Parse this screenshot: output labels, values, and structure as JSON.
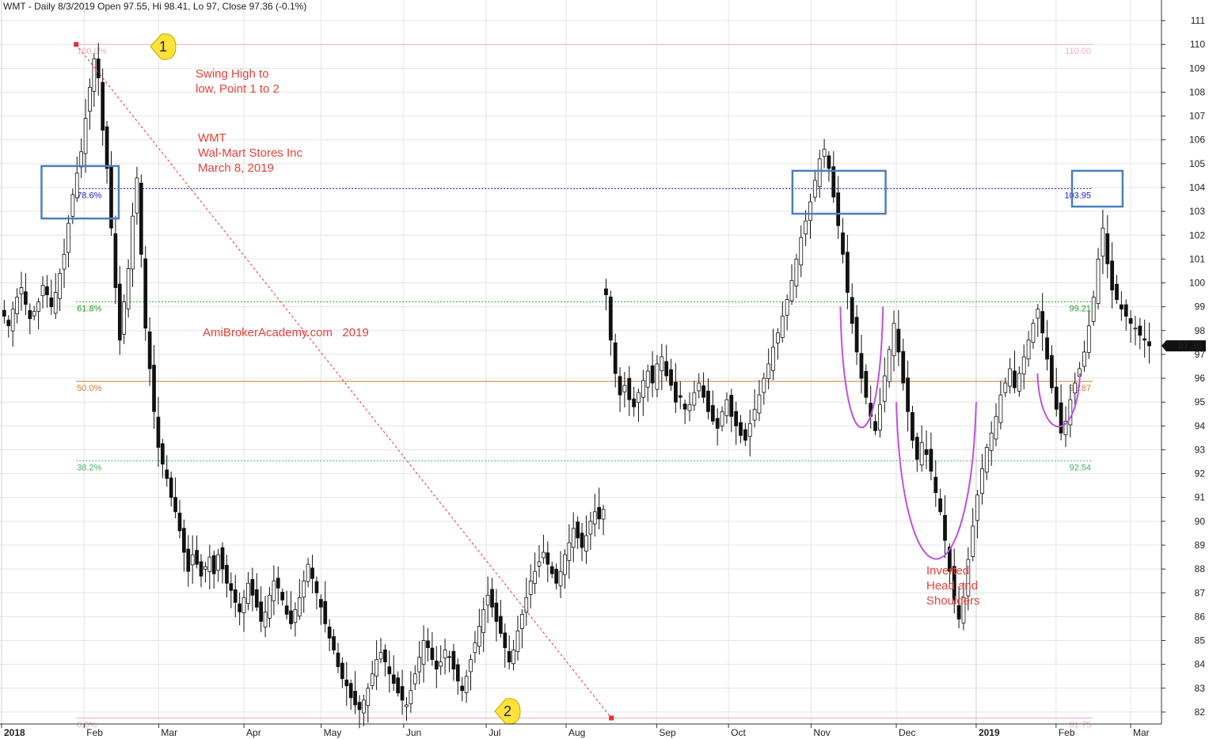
{
  "header": {
    "title": "WMT - Daily 8/3/2019 Open 97.55, Hi 98.41, Lo 97, Close 97.36 (-0.1%)"
  },
  "annotations": {
    "swing_line1": "Swing High to",
    "swing_line2": "low, Point 1 to 2",
    "ticker": "WMT",
    "company": "Wal-Mart Stores Inc",
    "date": "March 8, 2019",
    "watermark": "AmiBrokerAcademy.com   2019",
    "pattern_line1": "Inverted",
    "pattern_line2": "Head and",
    "pattern_line3": "Shoulders",
    "marker1": "1",
    "marker2": "2"
  },
  "colors": {
    "annotation": "#e8403a",
    "box": "#4a7ec0",
    "arc": "#c050e0",
    "trend": "#e83030",
    "fib_100": "#f0b0b8",
    "fib_786": "#2222cc",
    "fib_618": "#2a9a2a",
    "fib_50": "#d07a30",
    "fib_382": "#44b060",
    "fib_0": "#f0b0b8",
    "marker_fill": "#ffe23a"
  },
  "chart_data": {
    "type": "candlestick",
    "last_price": 97.36,
    "ylim": [
      81.5,
      111.4
    ],
    "y_ticks": [
      82,
      83,
      84,
      85,
      86,
      87,
      88,
      89,
      90,
      91,
      92,
      93,
      94,
      95,
      96,
      97,
      98,
      99,
      100,
      101,
      102,
      103,
      104,
      105,
      106,
      107,
      108,
      109,
      110,
      111
    ],
    "x_range": [
      "2018-01-01",
      "2019-03-12"
    ],
    "months": [
      {
        "label": "2018",
        "date": "2018-01-01",
        "bold": true
      },
      {
        "label": "Feb",
        "date": "2018-02-01",
        "bold": false
      },
      {
        "label": "Mar",
        "date": "2018-03-01",
        "bold": false
      },
      {
        "label": "Apr",
        "date": "2018-04-02",
        "bold": false
      },
      {
        "label": "May",
        "date": "2018-05-01",
        "bold": false
      },
      {
        "label": "Jun",
        "date": "2018-06-01",
        "bold": false
      },
      {
        "label": "Jul",
        "date": "2018-07-02",
        "bold": false
      },
      {
        "label": "Aug",
        "date": "2018-08-01",
        "bold": false
      },
      {
        "label": "Sep",
        "date": "2018-09-04",
        "bold": false
      },
      {
        "label": "Oct",
        "date": "2018-10-01",
        "bold": false
      },
      {
        "label": "Nov",
        "date": "2018-11-01",
        "bold": false
      },
      {
        "label": "Dec",
        "date": "2018-12-03",
        "bold": false
      },
      {
        "label": "2019",
        "date": "2019-01-02",
        "bold": true
      },
      {
        "label": "Feb",
        "date": "2019-02-01",
        "bold": false
      },
      {
        "label": "Mar",
        "date": "2019-03-01",
        "bold": false
      }
    ],
    "fib_levels": [
      {
        "ratio": "100.0%",
        "value": 110.0,
        "value_label": "110.00",
        "style": "solid",
        "color": "#f0b0b8"
      },
      {
        "ratio": "78.6%",
        "value": 103.95,
        "value_label": "103.95",
        "style": "dotted",
        "color": "#2222cc"
      },
      {
        "ratio": "61.8%",
        "value": 99.21,
        "value_label": "99.21",
        "style": "dotted",
        "color": "#2a9a2a"
      },
      {
        "ratio": "50.0%",
        "value": 95.87,
        "value_label": "95.87",
        "style": "solid",
        "color": "#d07a30"
      },
      {
        "ratio": "38.2%",
        "value": 92.54,
        "value_label": "92.54",
        "style": "dotted",
        "color": "#44b060"
      },
      {
        "ratio": "0.0%",
        "value": 81.75,
        "value_label": "81.75",
        "style": "solid",
        "color": "#f0b0b8"
      }
    ],
    "swing_points": [
      {
        "label": "1",
        "date": "2018-01-29",
        "value": 110.0
      },
      {
        "label": "2",
        "date": "2018-08-18",
        "value": 81.75
      }
    ],
    "boxes": [
      {
        "from": "2018-01-16",
        "to": "2018-02-14",
        "low": 102.7,
        "high": 104.9
      },
      {
        "from": "2018-10-25",
        "to": "2018-11-29",
        "low": 102.9,
        "high": 104.7
      },
      {
        "from": "2019-02-07",
        "to": "2019-02-26",
        "low": 103.2,
        "high": 104.7
      }
    ],
    "series": [
      {
        "segment": "Jan-Aug 2018",
        "start": "2018-01-02",
        "end": "2018-08-15",
        "closes": [
          98.6,
          98.2,
          98.9,
          99.4,
          99.8,
          99.1,
          98.5,
          98.8,
          99.2,
          99.9,
          99.5,
          99.0,
          99.6,
          100.4,
          101.2,
          102.5,
          103.7,
          104.6,
          105.5,
          106.9,
          108.2,
          109.4,
          108.6,
          106.4,
          104.8,
          102.3,
          99.8,
          97.6,
          99.2,
          100.6,
          102.8,
          104.4,
          101.2,
          98.1,
          96.4,
          94.6,
          93.1,
          92.4,
          91.8,
          91.0,
          90.4,
          89.6,
          88.7,
          87.9,
          88.6,
          88.2,
          87.7,
          88.1,
          88.5,
          87.8,
          88.6,
          88.0,
          87.4,
          87.1,
          86.6,
          86.2,
          86.8,
          87.4,
          86.9,
          86.4,
          85.8,
          86.2,
          86.9,
          87.5,
          87.2,
          86.7,
          86.1,
          85.7,
          86.3,
          86.8,
          87.5,
          88.2,
          87.6,
          87.0,
          86.4,
          85.7,
          85.1,
          84.6,
          83.9,
          83.4,
          83.1,
          82.6,
          82.3,
          82.1,
          82.5,
          83.0,
          83.6,
          84.2,
          84.5,
          84.1,
          83.6,
          83.2,
          82.8,
          82.5,
          82.3,
          82.9,
          83.6,
          84.3,
          85.0,
          84.7,
          84.2,
          83.8,
          84.1,
          84.6,
          84.3,
          83.8,
          83.3,
          82.9,
          83.5,
          84.2,
          84.9,
          85.6,
          86.3,
          86.9,
          86.4,
          85.8,
          85.3,
          84.7,
          84.1,
          84.6,
          85.4,
          86.1,
          86.8,
          87.5,
          87.9,
          88.3,
          88.7,
          88.2,
          87.8,
          87.4,
          87.9,
          88.6,
          89.1,
          89.7,
          89.3,
          88.9,
          89.4,
          90.0,
          90.4,
          90.1,
          90.5
        ]
      },
      {
        "segment": "Aug 2018-Mar 2019",
        "start": "2018-08-16",
        "end": "2019-03-08",
        "closes": [
          99.5,
          97.6,
          96.2,
          95.3,
          95.7,
          95.1,
          94.8,
          95.4,
          95.9,
          96.3,
          95.8,
          96.6,
          96.9,
          96.1,
          95.7,
          95.0,
          95.2,
          94.7,
          94.9,
          95.4,
          95.8,
          95.2,
          94.6,
          94.2,
          93.9,
          94.6,
          95.1,
          94.4,
          94.0,
          93.6,
          93.4,
          94.1,
          94.7,
          95.3,
          96.0,
          96.6,
          97.3,
          97.9,
          98.6,
          99.3,
          100.1,
          101.0,
          101.9,
          102.6,
          103.4,
          104.3,
          105.2,
          105.6,
          104.8,
          103.6,
          102.4,
          101.2,
          99.6,
          98.3,
          97.1,
          96.0,
          95.2,
          94.4,
          93.8,
          94.9,
          96.1,
          97.2,
          98.3,
          97.1,
          95.8,
          94.6,
          93.4,
          92.6,
          93.3,
          92.8,
          92.1,
          91.2,
          90.4,
          89.2,
          87.9,
          86.7,
          85.9,
          86.8,
          88.4,
          89.8,
          91.1,
          92.2,
          93.1,
          93.7,
          94.4,
          95.3,
          95.8,
          96.4,
          95.6,
          96.2,
          96.9,
          97.6,
          98.3,
          98.9,
          97.9,
          96.8,
          95.6,
          94.7,
          93.7,
          94.2,
          95.1,
          95.8,
          96.4,
          97.1,
          98.2,
          99.4,
          101.0,
          102.3,
          100.8,
          99.7,
          99.3,
          98.9,
          98.6,
          98.3,
          98.1,
          97.8,
          97.6,
          97.36
        ]
      }
    ]
  }
}
